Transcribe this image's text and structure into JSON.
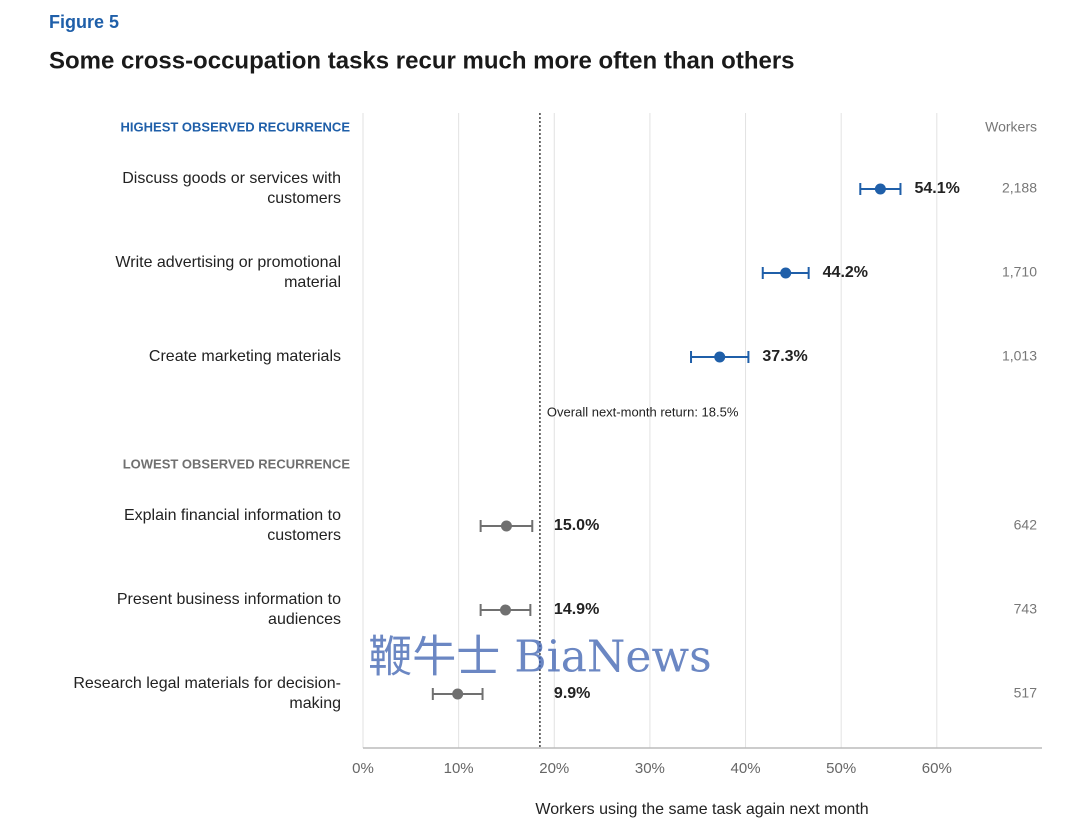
{
  "chart_data": {
    "type": "dotplot",
    "figure_label": "Figure 5",
    "title": "Some cross-occupation tasks recur much more often than others",
    "xlabel": "Workers using the same task again next month",
    "workers_title": "Workers",
    "xlim": [
      0,
      71
    ],
    "xticks": [
      {
        "value": 0,
        "label": "0%"
      },
      {
        "value": 10,
        "label": "10%"
      },
      {
        "value": 20,
        "label": "20%"
      },
      {
        "value": 30,
        "label": "30%"
      },
      {
        "value": 40,
        "label": "40%"
      },
      {
        "value": 50,
        "label": "50%"
      },
      {
        "value": 60,
        "label": "60%"
      }
    ],
    "grid": true,
    "reference": {
      "value": 18.5,
      "label": "Overall next-month return: 18.5%"
    },
    "groups": [
      {
        "label": "HIGHEST OBSERVED RECURRENCE",
        "color": "#1f5fa9",
        "categories": [
          "Discuss goods or services with customers",
          "Write advertising or promotional material",
          "Create marketing materials"
        ],
        "values": [
          54.1,
          44.2,
          37.3
        ],
        "errors": [
          2.1,
          2.4,
          3.0
        ],
        "value_labels": [
          "54.1%",
          "44.2%",
          "37.3%"
        ],
        "workers": [
          "2,188",
          "1,710",
          "1,013"
        ]
      },
      {
        "label": "LOWEST OBSERVED RECURRENCE",
        "color": "#707070",
        "categories": [
          "Explain financial information to customers",
          "Present business information to audiences",
          "Research legal materials for decision-making"
        ],
        "values": [
          15.0,
          14.9,
          9.9
        ],
        "errors": [
          2.7,
          2.6,
          2.6
        ],
        "value_labels": [
          "15.0%",
          "14.9%",
          "9.9%"
        ],
        "workers": [
          "642",
          "743",
          "517"
        ]
      }
    ],
    "watermark": "鞭牛士 BiaNews"
  }
}
